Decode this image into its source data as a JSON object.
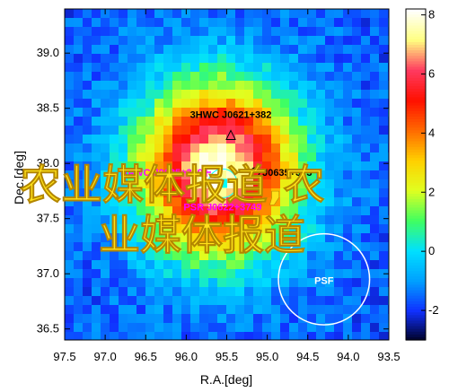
{
  "chart_data": {
    "type": "heatmap",
    "title": "",
    "xlabel": "R.A.[deg]",
    "ylabel": "Dec.[deg]",
    "xlim": [
      97.5,
      93.5
    ],
    "ylim": [
      36.4,
      39.4
    ],
    "x_ticks": [
      "97.5",
      "97.0",
      "96.5",
      "96.0",
      "95.5",
      "95.0",
      "94.5",
      "94.0",
      "93.5"
    ],
    "y_ticks": [
      "39.0",
      "38.5",
      "38.0",
      "37.5",
      "37.0",
      "36.5"
    ],
    "colorbar": {
      "ticks": [
        "8",
        "6",
        "4",
        "2",
        "0",
        "-2"
      ],
      "range": [
        -3,
        8.2
      ],
      "colors": [
        "#000020",
        "#1030ff",
        "#00a0ff",
        "#00e0ff",
        "#40ff60",
        "#e0ff20",
        "#ffd000",
        "#ff6a00",
        "#ff1000",
        "#ff3a60",
        "#ffff80",
        "#ffffff"
      ]
    },
    "peak": {
      "ra": 95.6,
      "dec": 37.95,
      "value": 8.0
    },
    "annotations": [
      {
        "label": "3HWC J0621+382",
        "ra": 95.45,
        "dec": 38.25,
        "marker": "triangle",
        "color": "#000000"
      },
      {
        "label": "J0635+373",
        "ra": 95.15,
        "dec": 37.92,
        "marker": "circle",
        "color": "#000000"
      },
      {
        "label": "HAWC J0635+379",
        "ra": 95.75,
        "dec": 37.92,
        "marker": "plus",
        "color": "#ff00ff"
      },
      {
        "label": "PSR J0622+3749",
        "ra": 95.55,
        "dec": 37.82,
        "marker": "square",
        "color": "#00ffff"
      }
    ],
    "psf": {
      "label": "PSF",
      "ra": 94.3,
      "dec": 36.95,
      "radius_deg": 0.45
    }
  },
  "overlay": {
    "line1": "农业媒体报道,农",
    "line2": "业媒体报道"
  }
}
